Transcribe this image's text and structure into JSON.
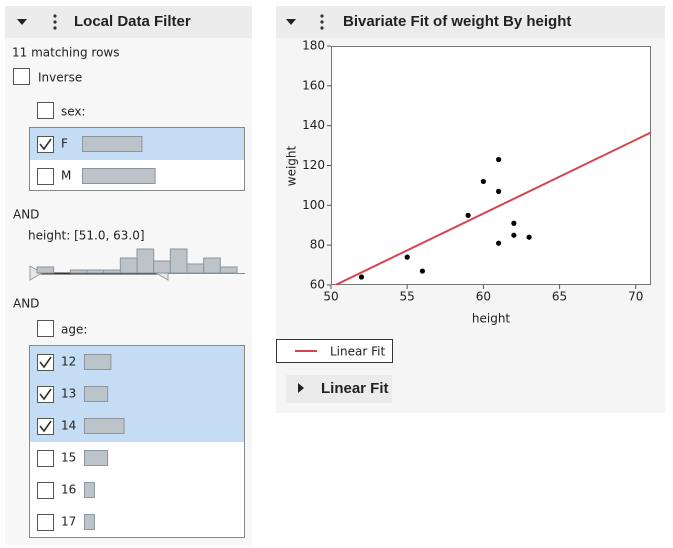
{
  "filter": {
    "title": "Local Data Filter",
    "matching": "11 matching rows",
    "inverse": "Inverse",
    "bar_color": "#bcc3c9",
    "sex": {
      "label": "sex:",
      "options": [
        {
          "label": "F",
          "count": 18,
          "checked": true
        },
        {
          "label": "M",
          "count": 22,
          "checked": false
        }
      ]
    },
    "height": {
      "connector": "AND",
      "label": "height: [51.0, 63.0]",
      "counts": [
        2,
        0,
        1,
        1,
        1,
        5,
        8,
        4,
        8,
        3,
        5,
        2
      ]
    },
    "age": {
      "connector": "AND",
      "label": "age:",
      "options": [
        {
          "label": "12",
          "count": 8,
          "checked": true
        },
        {
          "label": "13",
          "count": 7,
          "checked": true
        },
        {
          "label": "14",
          "count": 12,
          "checked": true
        },
        {
          "label": "15",
          "count": 7,
          "checked": false
        },
        {
          "label": "16",
          "count": 3,
          "checked": false
        },
        {
          "label": "17",
          "count": 3,
          "checked": false
        }
      ]
    }
  },
  "chart_data": {
    "type": "scatter",
    "title": "Bivariate Fit of weight By height",
    "x_label": "height",
    "y_label": "weight",
    "x": [
      52,
      55,
      56,
      59,
      60,
      61,
      61,
      61,
      62,
      62,
      63
    ],
    "y": [
      64,
      74,
      67,
      95,
      112,
      123,
      107,
      81,
      91,
      85,
      84
    ],
    "color": "#000000",
    "xlim": [
      50,
      71
    ],
    "ylim": [
      60,
      180
    ],
    "xticks": [
      50,
      55,
      60,
      65,
      70
    ],
    "yticks": [
      60,
      80,
      100,
      120,
      140,
      160,
      180
    ],
    "fit": {
      "name": "Linear Fit",
      "color": "#d4464f",
      "x": [
        50,
        71
      ],
      "y": [
        58.9,
        136.6
      ]
    }
  },
  "report": {
    "title": "Linear Fit"
  }
}
